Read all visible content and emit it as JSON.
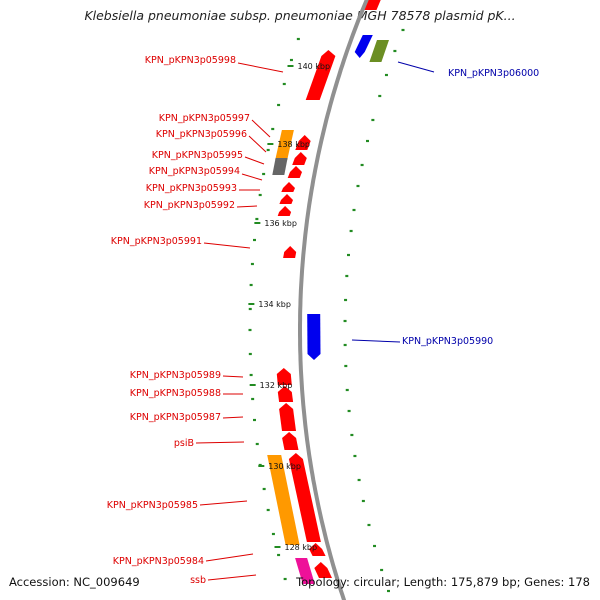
{
  "title": "Klebsiella pneumoniae subsp. pneumoniae MGH 78578 plasmid pK...",
  "footer": {
    "accession": "Accession: NC_009649",
    "summary": "Topology: circular; Length: 175,879 bp; Genes: 178"
  },
  "colors": {
    "forward": "#ff0000",
    "reverse": "#0000ee",
    "label_forward": "#dd0000",
    "label_reverse": "#0000aa",
    "backbone": "#909090",
    "gc_ticks": "#228b22",
    "orange": "#ff9900",
    "olive": "#6b8e23",
    "magenta": "#ee1199",
    "gray": "#666666"
  },
  "ticks": [
    "140 kbp",
    "138 kbp",
    "136 kbp",
    "134 kbp",
    "132 kbp",
    "130 kbp",
    "128 kbp"
  ],
  "genes": [
    {
      "name": "KPN_pKPN3p06000",
      "strand": "reverse"
    },
    {
      "name": "KPN_pKPN3p05998",
      "strand": "forward"
    },
    {
      "name": "KPN_pKPN3p05997",
      "strand": "forward"
    },
    {
      "name": "KPN_pKPN3p05996",
      "strand": "forward"
    },
    {
      "name": "KPN_pKPN3p05995",
      "strand": "forward"
    },
    {
      "name": "KPN_pKPN3p05994",
      "strand": "forward"
    },
    {
      "name": "KPN_pKPN3p05993",
      "strand": "forward"
    },
    {
      "name": "KPN_pKPN3p05992",
      "strand": "forward"
    },
    {
      "name": "KPN_pKPN3p05991",
      "strand": "forward"
    },
    {
      "name": "KPN_pKPN3p05990",
      "strand": "reverse"
    },
    {
      "name": "KPN_pKPN3p05989",
      "strand": "forward"
    },
    {
      "name": "KPN_pKPN3p05988",
      "strand": "forward"
    },
    {
      "name": "KPN_pKPN3p05987",
      "strand": "forward"
    },
    {
      "name": "psiB",
      "strand": "forward"
    },
    {
      "name": "KPN_pKPN3p05985",
      "strand": "forward"
    },
    {
      "name": "KPN_pKPN3p05984",
      "strand": "forward"
    },
    {
      "name": "ssb",
      "strand": "forward"
    }
  ]
}
